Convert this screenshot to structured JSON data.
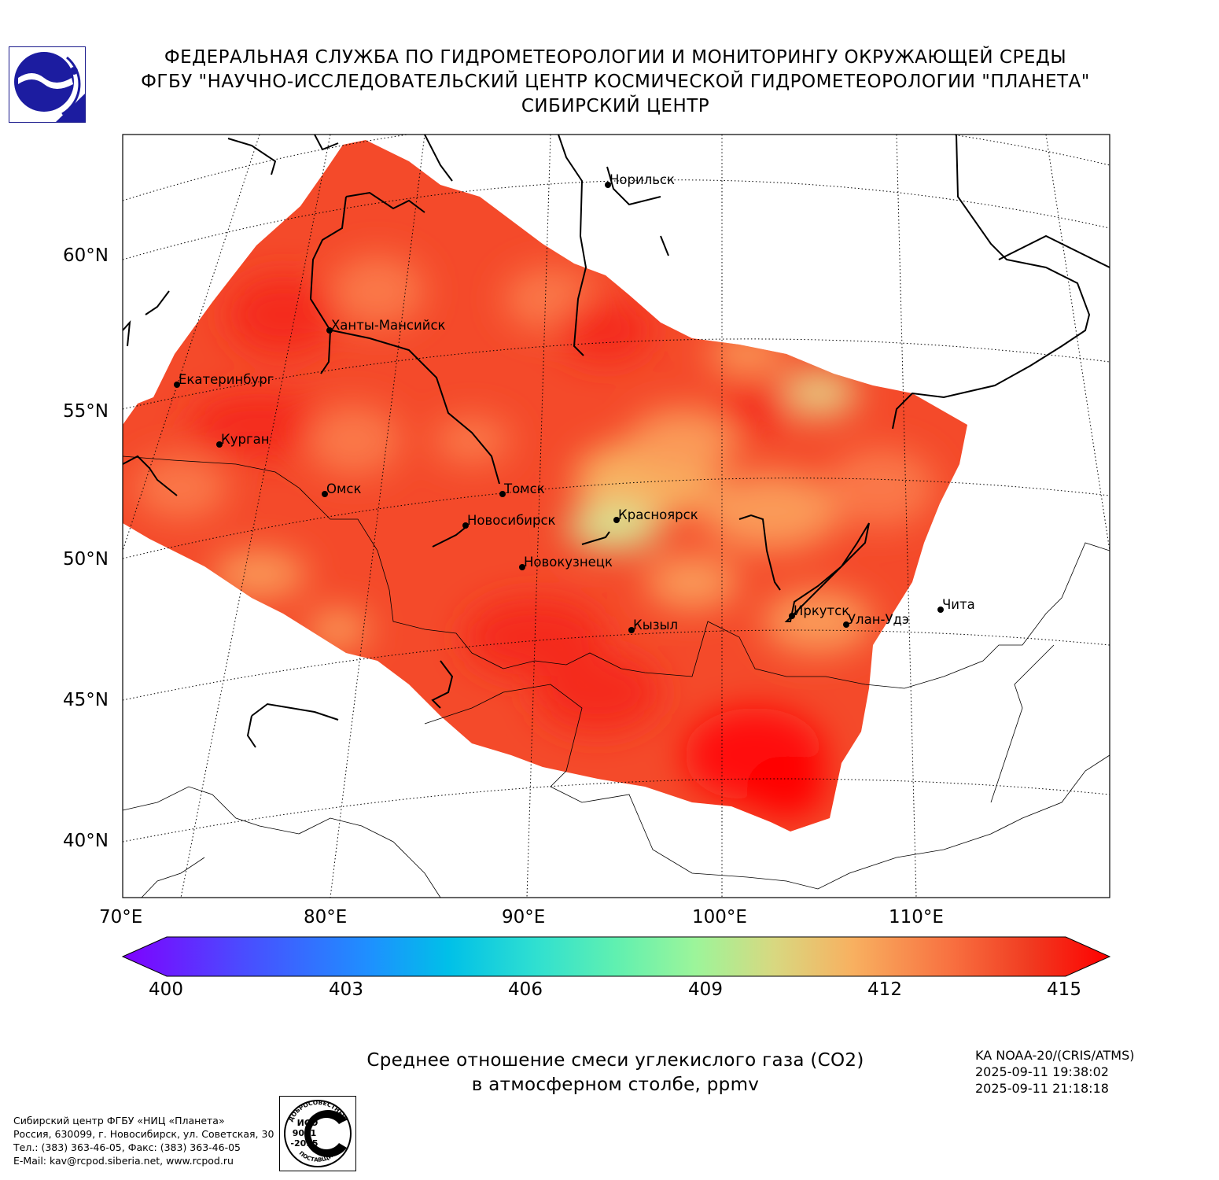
{
  "header": {
    "line1": "ФЕДЕРАЛЬНАЯ СЛУЖБА ПО ГИДРОМЕТЕОРОЛОГИИ И МОНИТОРИНГУ ОКРУЖАЮЩЕЙ СРЕДЫ",
    "line2": "ФГБУ \"НАУЧНО-ИССЛЕДОВАТЕЛЬСКИЙ ЦЕНТР КОСМИЧЕСКОЙ ГИДРОМЕТЕОРОЛОГИИ \"ПЛАНЕТА\"",
    "line3": "СИБИРСКИЙ ЦЕНТР"
  },
  "map": {
    "lat_labels": [
      "60°N",
      "55°N",
      "50°N",
      "45°N",
      "40°N"
    ],
    "lon_labels": [
      "70°E",
      "80°E",
      "90°E",
      "100°E",
      "110°E"
    ],
    "cities": [
      {
        "name": "Норильск"
      },
      {
        "name": "Ханты-Мансийск"
      },
      {
        "name": "Екатеринбург"
      },
      {
        "name": "Курган"
      },
      {
        "name": "Омск"
      },
      {
        "name": "Томск"
      },
      {
        "name": "Новосибирск"
      },
      {
        "name": "Красноярск"
      },
      {
        "name": "Новокузнецк"
      },
      {
        "name": "Кызыл"
      },
      {
        "name": "Иркутск"
      },
      {
        "name": "Улан-Удэ"
      },
      {
        "name": "Чита"
      }
    ]
  },
  "colorbar": {
    "min": 400,
    "max": 415,
    "ticks": [
      "400",
      "403",
      "406",
      "409",
      "412",
      "415"
    ],
    "colors": [
      "#7f00ff",
      "#4b4bff",
      "#1e90ff",
      "#00c0e8",
      "#30e0d0",
      "#60f0b0",
      "#9cf59a",
      "#d8d880",
      "#f8b060",
      "#f87040",
      "#f03a20",
      "#ff0000"
    ]
  },
  "caption": {
    "line1": "Среднее отношение смеси углекислого газа (CO2)",
    "line2": "в атмосферном столбе, ppmv"
  },
  "satellite": {
    "name": "KA NOAA-20/(CRIS/ATMS)",
    "time_start": "2025-09-11 19:38:02",
    "time_end": "2025-09-11 21:18:18"
  },
  "organization": {
    "line1": "Сибирский центр ФГБУ «НИЦ «Планета»",
    "line2": "Россия, 630099, г. Новосибирск, ул. Советская, 30",
    "line3": "Тел.: (383) 363-46-05, Факс: (383) 363-46-05",
    "line4": "E-Mail: kav@rcpod.siberia.net, www.rcpod.ru"
  },
  "iso_badge": {
    "top_text": "ДОБРОСОВЕСТНЫЙ",
    "line1": "ИСО",
    "line2": "9001",
    "line3": "-2015",
    "bottom_text": "ПОСТАВЩИК"
  }
}
